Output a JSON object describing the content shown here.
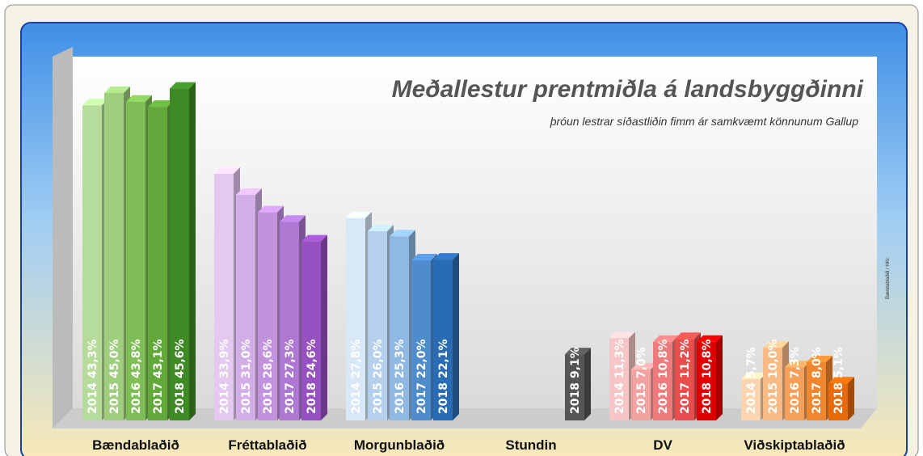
{
  "chart_data": {
    "type": "bar3d",
    "title": "Meðallestur prentmiðla á landsbyggðinni",
    "subtitle": "þróun lestrar síðastliðin fimm ár samkvæmt könnunum Gallup",
    "source": "Bændablaðið / HKr.",
    "categories": [
      "Bændablaðið",
      "Fréttablaðið",
      "Morgunblaðið",
      "Stundin",
      "DV",
      "Viðskiptablaðið"
    ],
    "ylim": [
      0,
      50
    ],
    "series": [
      {
        "name": "2014",
        "values": [
          43.3,
          33.9,
          27.8,
          null,
          11.3,
          5.7
        ],
        "value_labels": [
          "43,3%",
          "33,9%",
          "27,8%",
          null,
          "11,3%",
          "5,7%"
        ],
        "colors": [
          "#b5dc9a",
          "#e4c8f0",
          "#d8e8f6",
          "#999999",
          "#f6c6c6",
          "#fbd4b0"
        ]
      },
      {
        "name": "2015",
        "values": [
          45.0,
          31.0,
          26.0,
          null,
          7.0,
          10.0
        ],
        "value_labels": [
          "45,0%",
          "31,0%",
          "26,0%",
          null,
          "7,0%",
          "10,0%"
        ],
        "colors": [
          "#9fce7e",
          "#d2aee6",
          "#b5d0ec",
          "#999999",
          "#f3a2a2",
          "#f8bb86"
        ]
      },
      {
        "name": "2016",
        "values": [
          43.8,
          28.6,
          25.3,
          null,
          10.8,
          7.3
        ],
        "value_labels": [
          "43,8%",
          "28,6%",
          "25,3%",
          null,
          "10,8%",
          "7,3%"
        ],
        "colors": [
          "#7fbe57",
          "#c193dd",
          "#8fb8e2",
          "#999999",
          "#ee7b7b",
          "#f5a05a"
        ]
      },
      {
        "name": "2017",
        "values": [
          43.1,
          27.3,
          22.0,
          null,
          11.2,
          8.0
        ],
        "value_labels": [
          "43,1%",
          "27,3%",
          "22,0%",
          null,
          "11,2%",
          "8,0%"
        ],
        "colors": [
          "#63a83b",
          "#ad78d2",
          "#4f8ccc",
          "#999999",
          "#e84e4e",
          "#f0872f"
        ]
      },
      {
        "name": "2018",
        "values": [
          45.6,
          24.6,
          22.1,
          9.1,
          10.8,
          5.1
        ],
        "value_labels": [
          "45,6%",
          "24,6%",
          "22,1%",
          "9,1%",
          "10,8%",
          "5,1%"
        ],
        "colors": [
          "#3f8a25",
          "#9650c0",
          "#2a6cb4",
          "#555555",
          "#e00000",
          "#e86a0a"
        ]
      }
    ]
  }
}
